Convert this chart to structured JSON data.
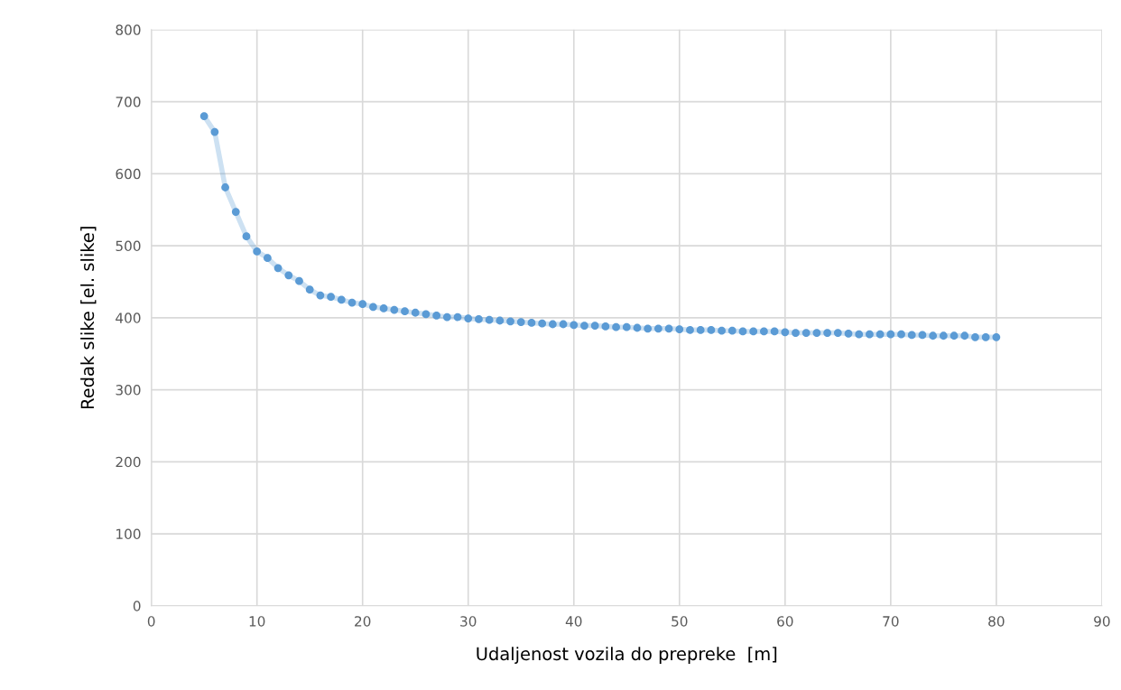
{
  "chart_data": {
    "type": "line",
    "xlabel": "Udaljenost vozila do prepreke  [m]",
    "ylabel": "Redak slike [el. slike]",
    "xlim": [
      0,
      90
    ],
    "xticks": [
      0,
      10,
      20,
      30,
      40,
      50,
      60,
      70,
      80,
      90
    ],
    "ylim": [
      0,
      800
    ],
    "yticks": [
      0,
      100,
      200,
      300,
      400,
      500,
      600,
      700,
      800
    ],
    "grid": true,
    "marker": "circle",
    "line_style": "solid",
    "series": [
      {
        "color": "#5b9bd5",
        "x": [
          5,
          6,
          7,
          8,
          9,
          10,
          11,
          12,
          13,
          14,
          15,
          16,
          17,
          18,
          19,
          20,
          21,
          22,
          23,
          24,
          25,
          26,
          27,
          28,
          29,
          30,
          31,
          32,
          33,
          34,
          35,
          36,
          37,
          38,
          39,
          40,
          41,
          42,
          43,
          44,
          45,
          46,
          47,
          48,
          49,
          50,
          51,
          52,
          53,
          54,
          55,
          56,
          57,
          58,
          59,
          60,
          61,
          62,
          63,
          64,
          65,
          66,
          67,
          68,
          69,
          70,
          71,
          72,
          73,
          74,
          75,
          76,
          77,
          78,
          79,
          80
        ],
        "values": [
          680,
          658,
          581,
          547,
          513,
          492,
          483,
          469,
          459,
          451,
          439,
          431,
          429,
          425,
          421,
          419,
          415,
          413,
          411,
          409,
          407,
          405,
          403,
          401,
          401,
          399,
          398,
          397,
          396,
          395,
          394,
          393,
          392,
          391,
          391,
          390,
          389,
          389,
          388,
          387,
          387,
          386,
          385,
          385,
          385,
          384,
          383,
          383,
          383,
          382,
          382,
          381,
          381,
          381,
          381,
          380,
          379,
          379,
          379,
          379,
          379,
          378,
          377,
          377,
          377,
          377,
          377,
          376,
          376,
          375,
          375,
          375,
          375,
          373,
          373,
          373
        ]
      }
    ]
  }
}
